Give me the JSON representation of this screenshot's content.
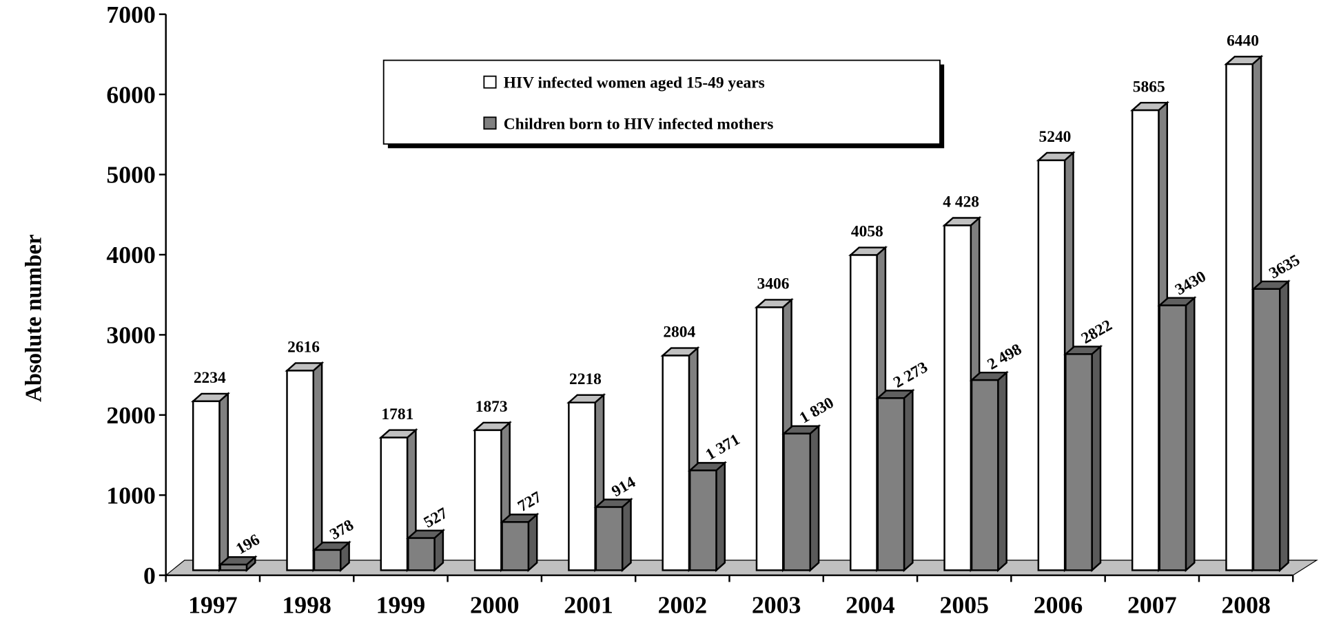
{
  "chart_data": {
    "type": "bar3d",
    "y_axis_label": "Absolute number",
    "categories": [
      "1997",
      "1998",
      "1999",
      "2000",
      "2001",
      "2002",
      "2003",
      "2004",
      "2005",
      "2006",
      "2007",
      "2008"
    ],
    "series": [
      {
        "name": "HIV infected women aged 15-49 years",
        "color": "#ffffff",
        "values": [
          2234,
          2616,
          1781,
          1873,
          2218,
          2804,
          3406,
          4058,
          4428,
          5240,
          5865,
          6440
        ],
        "value_labels": [
          "2234",
          "2616",
          "1781",
          "1873",
          "2218",
          "2804",
          "3406",
          "4058",
          "4 428",
          "5240",
          "5865",
          "6440"
        ]
      },
      {
        "name": "Children born to HIV infected mothers",
        "color": "#808080",
        "values": [
          196,
          378,
          527,
          727,
          914,
          1371,
          1830,
          2273,
          2498,
          2822,
          3430,
          3635
        ],
        "value_labels": [
          "196",
          "378",
          "527",
          "727",
          "914",
          "1 371",
          "1 830",
          "2 273",
          "2 498",
          "2822",
          "3430",
          "3635"
        ]
      }
    ],
    "ylim": [
      0,
      7000
    ],
    "yticks": [
      0,
      1000,
      2000,
      3000,
      4000,
      5000,
      6000,
      7000
    ]
  }
}
